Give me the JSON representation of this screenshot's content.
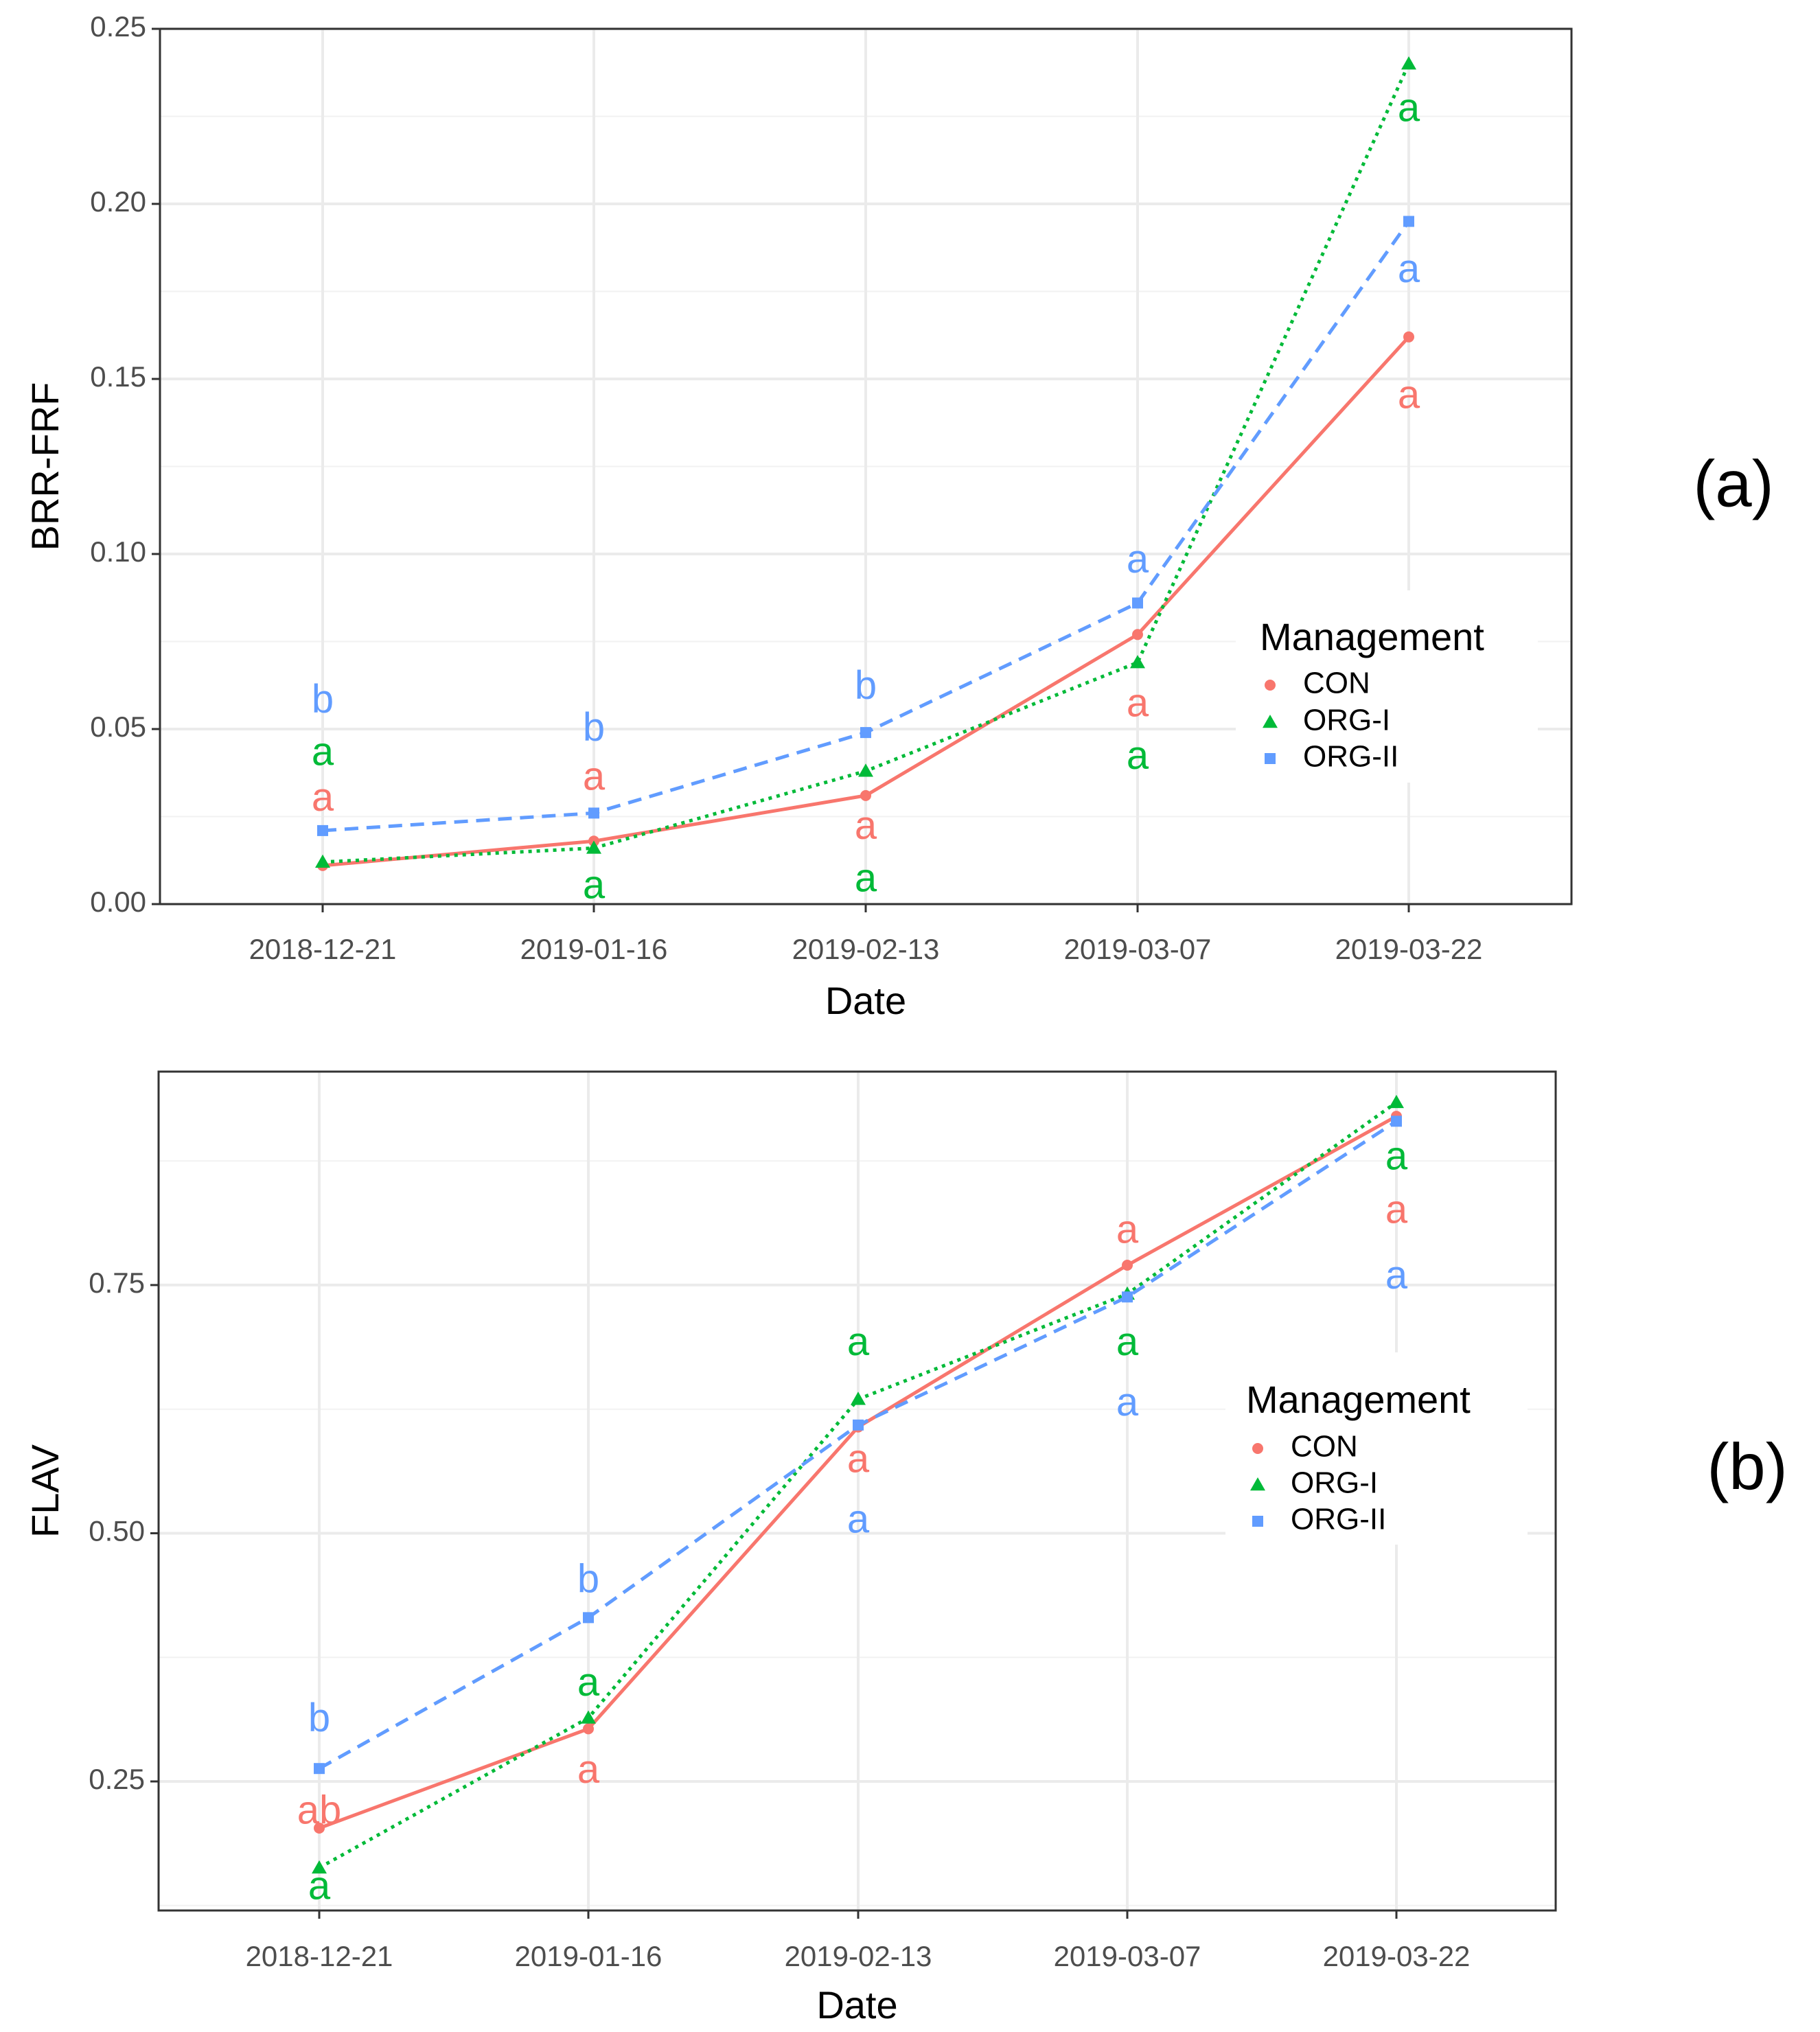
{
  "legend_title": "Management",
  "series_styles": [
    {
      "name": "CON",
      "color": "#F8766D",
      "dash": "none",
      "marker": "circle"
    },
    {
      "name": "ORG-I",
      "color": "#00BA38",
      "dash": "dotted",
      "marker": "triangle"
    },
    {
      "name": "ORG-II",
      "color": "#619CFF",
      "dash": "dashed",
      "marker": "square"
    }
  ],
  "chart_data": [
    {
      "type": "line",
      "panel_label": "(a)",
      "xlabel": "Date",
      "ylabel": "BRR-FRF",
      "categories": [
        "2018-12-21",
        "2019-01-16",
        "2019-02-13",
        "2019-03-07",
        "2019-03-22"
      ],
      "ylim": [
        0,
        0.25
      ],
      "yticks": [
        0.0,
        0.05,
        0.1,
        0.15,
        0.2,
        0.25
      ],
      "ytick_labels": [
        "0.00",
        "0.05",
        "0.10",
        "0.15",
        "0.20",
        "0.25"
      ],
      "series": [
        {
          "name": "CON",
          "values": [
            0.011,
            0.018,
            0.031,
            0.077,
            0.162
          ],
          "letters": [
            "a",
            "a",
            "a",
            "a",
            "a"
          ],
          "letter_y": [
            0.0305,
            0.0365,
            0.0225,
            0.0575,
            0.1455
          ]
        },
        {
          "name": "ORG-I",
          "values": [
            0.012,
            0.016,
            0.038,
            0.069,
            0.24
          ],
          "letters": [
            "a",
            "a",
            "a",
            "a",
            "a"
          ],
          "letter_y": [
            0.0435,
            0.0055,
            0.0075,
            0.0425,
            0.2275
          ]
        },
        {
          "name": "ORG-II",
          "values": [
            0.021,
            0.026,
            0.049,
            0.086,
            0.195
          ],
          "letters": [
            "b",
            "b",
            "b",
            "a",
            "a"
          ],
          "letter_y": [
            0.0585,
            0.0505,
            0.0625,
            0.0985,
            0.1815
          ]
        }
      ]
    },
    {
      "type": "line",
      "panel_label": "(b)",
      "xlabel": "Date",
      "ylabel": "FLAV",
      "categories": [
        "2018-12-21",
        "2019-01-16",
        "2019-02-13",
        "2019-03-07",
        "2019-03-22"
      ],
      "ylim": [
        0.12,
        0.965
      ],
      "yticks": [
        0.25,
        0.5,
        0.75
      ],
      "ytick_labels": [
        "0.25",
        "0.50",
        "0.75"
      ],
      "series": [
        {
          "name": "CON",
          "values": [
            0.203,
            0.303,
            0.607,
            0.77,
            0.92
          ],
          "letters": [
            "ab",
            "a",
            "a",
            "a",
            "a"
          ],
          "letter_y": [
            0.221,
            0.262,
            0.575,
            0.806,
            0.826
          ]
        },
        {
          "name": "ORG-I",
          "values": [
            0.163,
            0.314,
            0.635,
            0.741,
            0.934
          ],
          "letters": [
            "a",
            "a",
            "a",
            "a",
            "a"
          ],
          "letter_y": [
            0.145,
            0.35,
            0.693,
            0.693,
            0.88
          ]
        },
        {
          "name": "ORG-II",
          "values": [
            0.263,
            0.415,
            0.609,
            0.738,
            0.915
          ],
          "letters": [
            "b",
            "b",
            "a",
            "a",
            "a"
          ],
          "letter_y": [
            0.314,
            0.454,
            0.514,
            0.632,
            0.76
          ]
        }
      ]
    }
  ]
}
